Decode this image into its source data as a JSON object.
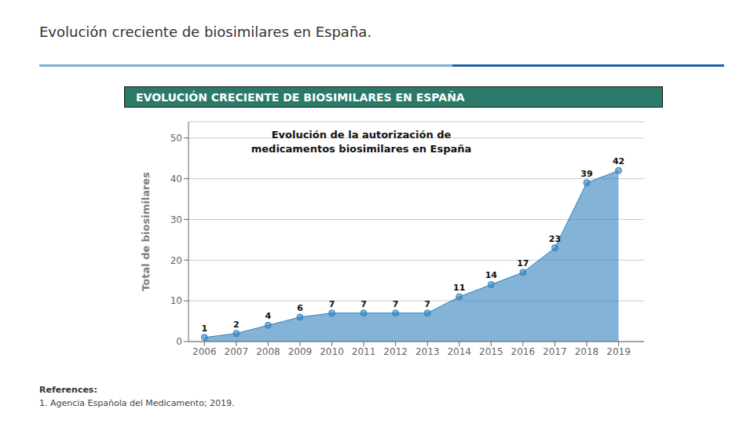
{
  "chart_data": {
    "type": "area",
    "title": "Evolución de la autorización de\nmedicamentos biosimilares en España",
    "ylabel": "Total de biosimilares",
    "x": [
      2006,
      2007,
      2008,
      2009,
      2010,
      2011,
      2012,
      2013,
      2014,
      2015,
      2016,
      2017,
      2018,
      2019
    ],
    "values": [
      1,
      2,
      4,
      6,
      7,
      7,
      7,
      7,
      11,
      14,
      17,
      23,
      39,
      42
    ],
    "xlim": [
      2005.5,
      2019.8
    ],
    "xticks": [
      2006,
      2007,
      2008,
      2009,
      2010,
      2011,
      2012,
      2013,
      2014,
      2015,
      2016,
      2017,
      2018,
      2019
    ],
    "ylim": [
      0,
      54
    ],
    "yticks": [
      0,
      10,
      20,
      30,
      40,
      50
    ],
    "grid": true,
    "data_labels": true,
    "marker": "circle",
    "annotations": [
      "Evolución creciente de biosimilares en España.",
      "EVOLUCIÓN CRECIENTE DE BIOSIMILARES EN ESPAÑA",
      "References:",
      "1. Agencia Española del Medicamento; 2019."
    ]
  }
}
